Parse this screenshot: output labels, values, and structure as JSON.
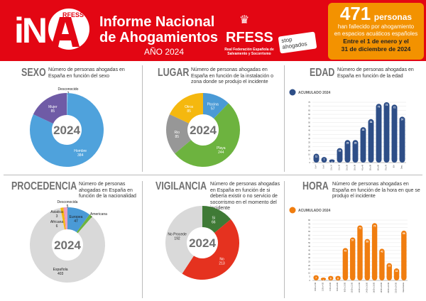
{
  "header": {
    "logo_text": "iNA",
    "logo_badge": "RFESS",
    "title_line1": "Informe Nacional",
    "title_line2": "de Ahogamientos",
    "year": "AÑO 2024",
    "federation": "RFESS",
    "federation_full": "Real Federación Española de Salvamento y Socorrismo",
    "stop_logo": "stop ahogados"
  },
  "stat": {
    "number": "471",
    "unit": "personas",
    "line1": "han fallecido por ahogamiento",
    "line2": "en espacios acuáticos españoles",
    "dates1": "Entre el 1 de enero y el",
    "dates2": "31 de diciembre de 2024"
  },
  "colors": {
    "brand_red": "#e30613",
    "accent_orange": "#f39200",
    "bar_blue": "#2e4e87",
    "bar_orange": "#f07d0f"
  },
  "chart_data": [
    {
      "id": "sexo",
      "type": "pie",
      "title": "SEXO",
      "subtitle": "Número de personas ahogadas en España en función del sexo",
      "center_label": "2024",
      "slices": [
        {
          "label": "Desconocido",
          "value": 2,
          "color": "#9bc3e6"
        },
        {
          "label": "Hombre",
          "value": 384,
          "color": "#4fa2dc"
        },
        {
          "label": "Mujer",
          "value": 85,
          "color": "#6f5ba6"
        }
      ]
    },
    {
      "id": "lugar",
      "type": "pie",
      "title": "LUGAR",
      "subtitle": "Número de personas ahogadas en España en función de la instalación o zona donde se produjo el incidente",
      "center_label": "2024",
      "slices": [
        {
          "label": "Piscina",
          "value": 57,
          "color": "#4a9ad6"
        },
        {
          "label": "Playa",
          "value": 244,
          "color": "#6db33f"
        },
        {
          "label": "Rio",
          "value": 85,
          "color": "#979797"
        },
        {
          "label": "Otros",
          "value": 85,
          "color": "#f5b80f"
        }
      ]
    },
    {
      "id": "edad",
      "type": "bar",
      "title": "EDAD",
      "subtitle": "Número de personas ahogadas en España en función de la edad",
      "legend": "ACUMULADO 2024",
      "categories": [
        "0 a 4",
        "5 a 9",
        "10 a 14",
        "15 a 19",
        "20 a 29",
        "30 a 39",
        "40 a 49",
        "50 a 59",
        "60 a 69",
        "70 a 79",
        "80+",
        "Desc."
      ],
      "values": [
        11,
        7,
        4,
        18,
        28,
        28,
        44,
        54,
        73,
        75,
        72,
        57
      ],
      "yticks": [
        0,
        5,
        10,
        15,
        20,
        25,
        30,
        35,
        40,
        45,
        50,
        55,
        60,
        65,
        70,
        75
      ],
      "ylim": [
        0,
        75
      ],
      "grid": true
    },
    {
      "id": "procedencia",
      "type": "pie",
      "title": "PROCEDENCIA",
      "subtitle": "Número de personas ahogadas en España en función de la nacionalidad",
      "center_label": "2024",
      "slices": [
        {
          "label": "Europea",
          "value": 47,
          "color": "#4a9ad6"
        },
        {
          "label": "Americana",
          "value": 7,
          "color": "#6db33f"
        },
        {
          "label": "Española",
          "value": 403,
          "color": "#d9d9d9"
        },
        {
          "label": "Africana",
          "value": 6,
          "color": "#f5b80f"
        },
        {
          "label": "Asiatica",
          "value": 3,
          "color": "#f08fb0"
        },
        {
          "label": "Desconocida",
          "value": 5,
          "color": "#e8a0c0"
        }
      ]
    },
    {
      "id": "vigilancia",
      "type": "pie",
      "title": "VIGILANCIA",
      "subtitle": "Número de personas ahogadas en España en función de si debería existir o no servicio de socorrismo en el momento del incidente",
      "center_label": "2024",
      "slices": [
        {
          "label": "Si",
          "value": 66,
          "color": "#3f7a36"
        },
        {
          "label": "No",
          "value": 213,
          "color": "#e5321f"
        },
        {
          "label": "No Procede",
          "value": 192,
          "color": "#d9d9d9"
        }
      ]
    },
    {
      "id": "hora",
      "type": "bar",
      "title": "HORA",
      "subtitle": "Número de personas ahogadas en España en función de la hora en que se produjo el incidente",
      "legend": "ACUMULADO 2024",
      "categories": [
        "0:00 a 2:00",
        "2:00 a 4:00",
        "4:00 a 6:00",
        "6:00 a 8:00",
        "8:00 a 10:00",
        "10:00 a 12:00",
        "12:00 a 14:00",
        "14:00 a 16:00",
        "16:00 a 18:00",
        "18:00 a 20:00",
        "20:00 a 22:00",
        "22:00 a 24:00",
        "Desconocida"
      ],
      "values": [
        7,
        1,
        6,
        6,
        43,
        57,
        73,
        55,
        76,
        42,
        23,
        16,
        66
      ],
      "yticks": [
        0,
        5,
        10,
        15,
        20,
        25,
        30,
        35,
        40,
        45,
        50,
        55,
        60,
        65,
        70,
        75,
        80
      ],
      "ylim": [
        0,
        80
      ],
      "grid": true
    }
  ]
}
